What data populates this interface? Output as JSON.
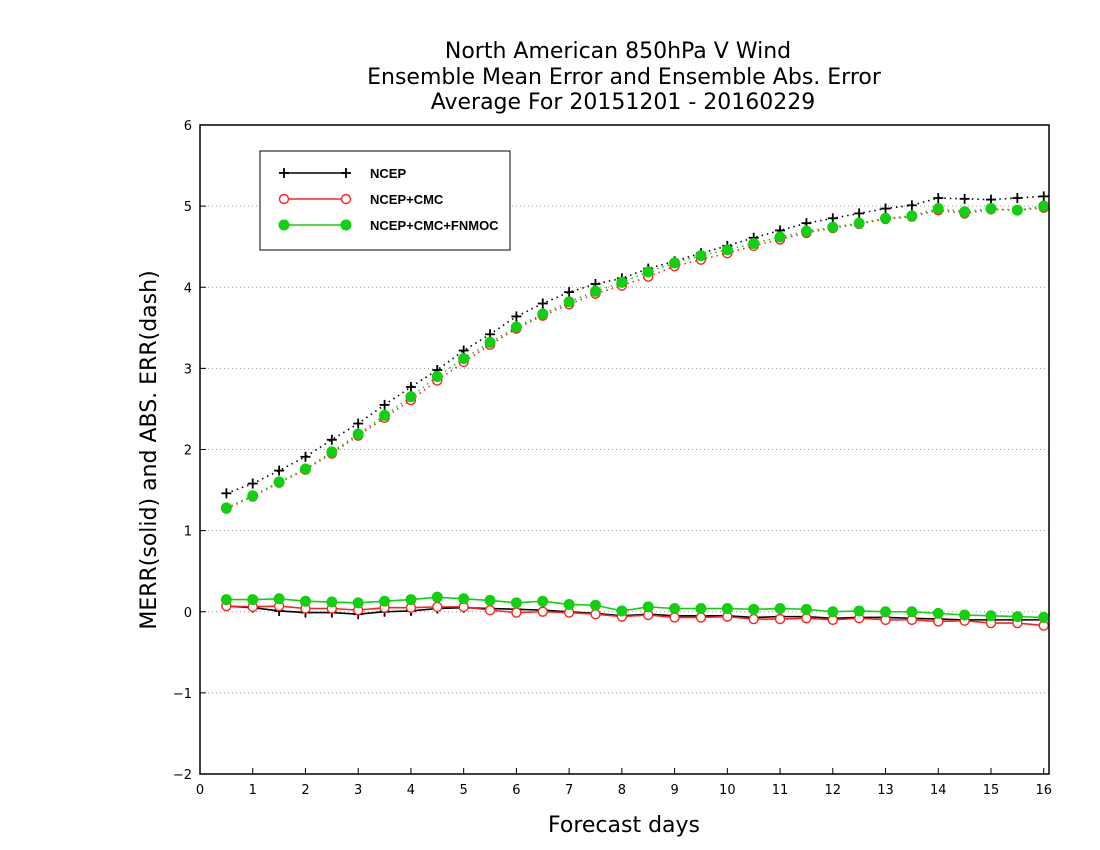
{
  "chart_data": {
    "type": "line",
    "title": [
      "North American 850hPa V Wind",
      "Ensemble Mean Error and Ensemble Abs. Error",
      "Average For 20151201 - 20160229"
    ],
    "xlabel": "Forecast days",
    "ylabel": "MERR(solid) and ABS. ERR(dash)",
    "xlim": [
      0,
      16.1
    ],
    "ylim": [
      -2,
      6
    ],
    "x_ticks": [
      0,
      1,
      2,
      3,
      4,
      5,
      6,
      7,
      8,
      9,
      10,
      11,
      12,
      13,
      14,
      15,
      16
    ],
    "y_ticks": [
      -2,
      -1,
      0,
      1,
      2,
      3,
      4,
      5,
      6
    ],
    "y_tick_labels": [
      "−2",
      "−1",
      "0",
      "1",
      "2",
      "3",
      "4",
      "5",
      "6"
    ],
    "grid": "horizontal dotted at y = 1..5",
    "legend_position": "top-left",
    "x": [
      0.5,
      1,
      1.5,
      2,
      2.5,
      3,
      3.5,
      4,
      4.5,
      5,
      5.5,
      6,
      6.5,
      7,
      7.5,
      8,
      8.5,
      9,
      9.5,
      10,
      10.5,
      11,
      11.5,
      12,
      12.5,
      13,
      13.5,
      14,
      14.5,
      15,
      15.5,
      16
    ],
    "series": [
      {
        "name": "NCEP",
        "color": "#000000",
        "marker": "plus",
        "abs_error": [
          1.46,
          1.58,
          1.74,
          1.91,
          2.12,
          2.32,
          2.55,
          2.77,
          2.98,
          3.22,
          3.42,
          3.64,
          3.8,
          3.94,
          4.04,
          4.11,
          4.23,
          4.32,
          4.42,
          4.51,
          4.61,
          4.7,
          4.79,
          4.85,
          4.91,
          4.97,
          5.01,
          5.1,
          5.09,
          5.08,
          5.1,
          5.12
        ],
        "mean_error": [
          0.07,
          0.05,
          0.01,
          -0.01,
          -0.01,
          -0.03,
          0.0,
          0.01,
          0.04,
          0.05,
          0.04,
          0.03,
          0.02,
          0.0,
          -0.02,
          -0.05,
          -0.03,
          -0.05,
          -0.05,
          -0.05,
          -0.07,
          -0.06,
          -0.06,
          -0.08,
          -0.07,
          -0.07,
          -0.08,
          -0.09,
          -0.1,
          -0.1,
          -0.1,
          -0.1
        ]
      },
      {
        "name": "NCEP+CMC",
        "color": "#ff2020",
        "marker": "open-circle",
        "abs_error": [
          1.27,
          1.42,
          1.59,
          1.75,
          1.95,
          2.17,
          2.39,
          2.61,
          2.85,
          3.08,
          3.29,
          3.49,
          3.65,
          3.79,
          3.92,
          4.02,
          4.13,
          4.26,
          4.34,
          4.42,
          4.51,
          4.59,
          4.67,
          4.73,
          4.78,
          4.84,
          4.87,
          4.95,
          4.91,
          4.96,
          4.95,
          4.98
        ],
        "mean_error": [
          0.07,
          0.06,
          0.07,
          0.04,
          0.04,
          0.02,
          0.05,
          0.05,
          0.06,
          0.06,
          0.02,
          -0.01,
          0.0,
          -0.01,
          -0.03,
          -0.06,
          -0.04,
          -0.07,
          -0.07,
          -0.06,
          -0.09,
          -0.09,
          -0.08,
          -0.1,
          -0.08,
          -0.1,
          -0.1,
          -0.12,
          -0.11,
          -0.14,
          -0.14,
          -0.17
        ]
      },
      {
        "name": "NCEP+CMC+FNMOC",
        "color": "#10d010",
        "marker": "filled-circle",
        "abs_error": [
          1.28,
          1.43,
          1.6,
          1.76,
          1.97,
          2.19,
          2.42,
          2.65,
          2.9,
          3.12,
          3.32,
          3.51,
          3.67,
          3.82,
          3.95,
          4.06,
          4.19,
          4.3,
          4.39,
          4.46,
          4.54,
          4.62,
          4.69,
          4.74,
          4.79,
          4.85,
          4.88,
          4.97,
          4.93,
          4.97,
          4.95,
          5.0
        ],
        "mean_error": [
          0.15,
          0.15,
          0.16,
          0.13,
          0.12,
          0.11,
          0.13,
          0.15,
          0.18,
          0.16,
          0.14,
          0.11,
          0.13,
          0.09,
          0.08,
          0.01,
          0.06,
          0.04,
          0.04,
          0.04,
          0.03,
          0.04,
          0.03,
          0.0,
          0.01,
          0.0,
          0.0,
          -0.02,
          -0.04,
          -0.05,
          -0.06,
          -0.07
        ]
      }
    ]
  }
}
